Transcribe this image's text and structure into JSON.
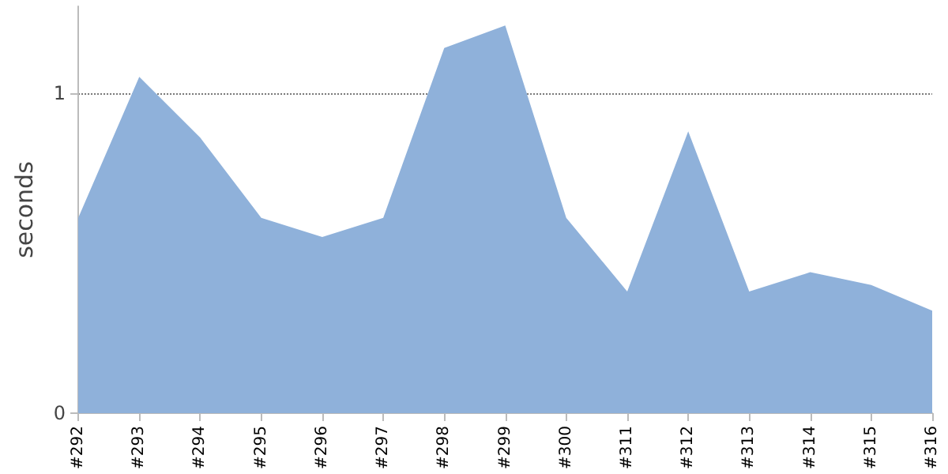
{
  "chart_data": {
    "type": "area",
    "ylabel": "seconds",
    "categories": [
      "#292",
      "#293",
      "#294",
      "#295",
      "#296",
      "#297",
      "#298",
      "#299",
      "#300",
      "#311",
      "#312",
      "#313",
      "#314",
      "#315",
      "#316"
    ],
    "values": [
      0.61,
      1.05,
      0.86,
      0.61,
      0.55,
      0.61,
      1.14,
      1.21,
      0.61,
      0.38,
      0.88,
      0.38,
      0.44,
      0.4,
      0.32
    ],
    "color": "#8fb1da",
    "ylim": [
      0,
      1.27
    ],
    "yticks": [
      0,
      1
    ],
    "grid": "y"
  }
}
